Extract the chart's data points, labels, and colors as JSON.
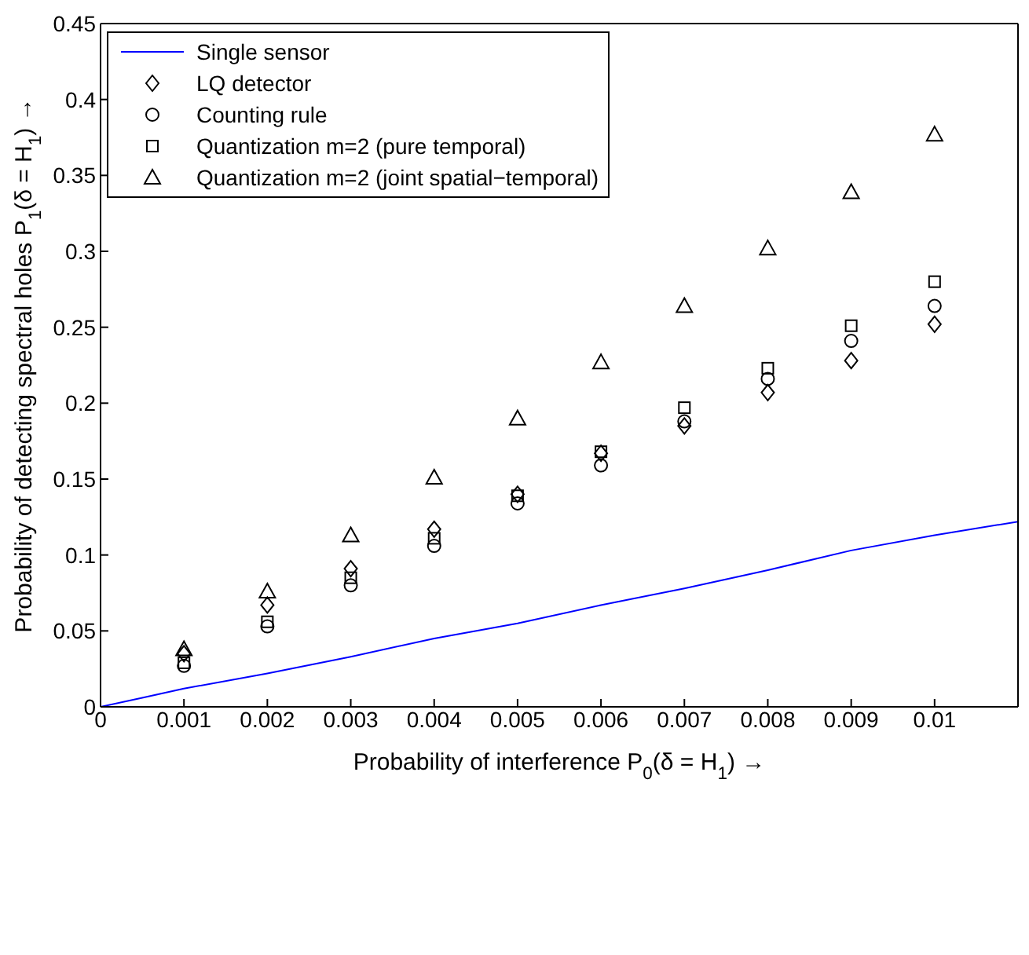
{
  "chart_data": {
    "type": "scatter",
    "xlabel": "Probability of interference P$_{0}$(δ = H$_{1}$) →",
    "ylabel": "Probability of detecting spectral holes P$_{1}$(δ = H$_{1}$) →",
    "x": [
      0.001,
      0.002,
      0.003,
      0.004,
      0.005,
      0.006,
      0.007,
      0.008,
      0.009,
      0.01
    ],
    "series": [
      {
        "name": "Single sensor",
        "type": "line",
        "color": "#0000ff",
        "marker": "none",
        "x": [
          0,
          0.0005,
          0.001,
          0.002,
          0.003,
          0.004,
          0.005,
          0.006,
          0.007,
          0.008,
          0.009,
          0.01,
          0.011
        ],
        "values": [
          0,
          0.006,
          0.012,
          0.022,
          0.033,
          0.045,
          0.055,
          0.067,
          0.078,
          0.09,
          0.103,
          0.113,
          0.122
        ]
      },
      {
        "name": "LQ detector",
        "color": "#000000",
        "marker": "diamond",
        "values": [
          0.035,
          0.067,
          0.091,
          0.117,
          0.14,
          0.167,
          0.185,
          0.207,
          0.228,
          0.252
        ]
      },
      {
        "name": "Counting rule",
        "color": "#000000",
        "marker": "circle",
        "values": [
          0.027,
          0.053,
          0.08,
          0.106,
          0.134,
          0.159,
          0.188,
          0.216,
          0.241,
          0.264
        ]
      },
      {
        "name": "Quantization m=2 (pure temporal)",
        "color": "#000000",
        "marker": "square",
        "values": [
          0.029,
          0.056,
          0.085,
          0.111,
          0.139,
          0.168,
          0.197,
          0.223,
          0.251,
          0.28
        ]
      },
      {
        "name": "Quantization m=2 (joint spatial−temporal)",
        "color": "#000000",
        "marker": "triangle",
        "values": [
          0.038,
          0.076,
          0.113,
          0.151,
          0.19,
          0.227,
          0.264,
          0.302,
          0.339,
          0.377
        ]
      }
    ],
    "xlim": [
      0,
      0.011
    ],
    "xticks": [
      0,
      0.001,
      0.002,
      0.003,
      0.004,
      0.005,
      0.006,
      0.007,
      0.008,
      0.009,
      0.01
    ],
    "ylim": [
      0,
      0.45
    ],
    "yticks": [
      0,
      0.05,
      0.1,
      0.15,
      0.2,
      0.25,
      0.3,
      0.35,
      0.4,
      0.45
    ],
    "legend": "top left"
  }
}
